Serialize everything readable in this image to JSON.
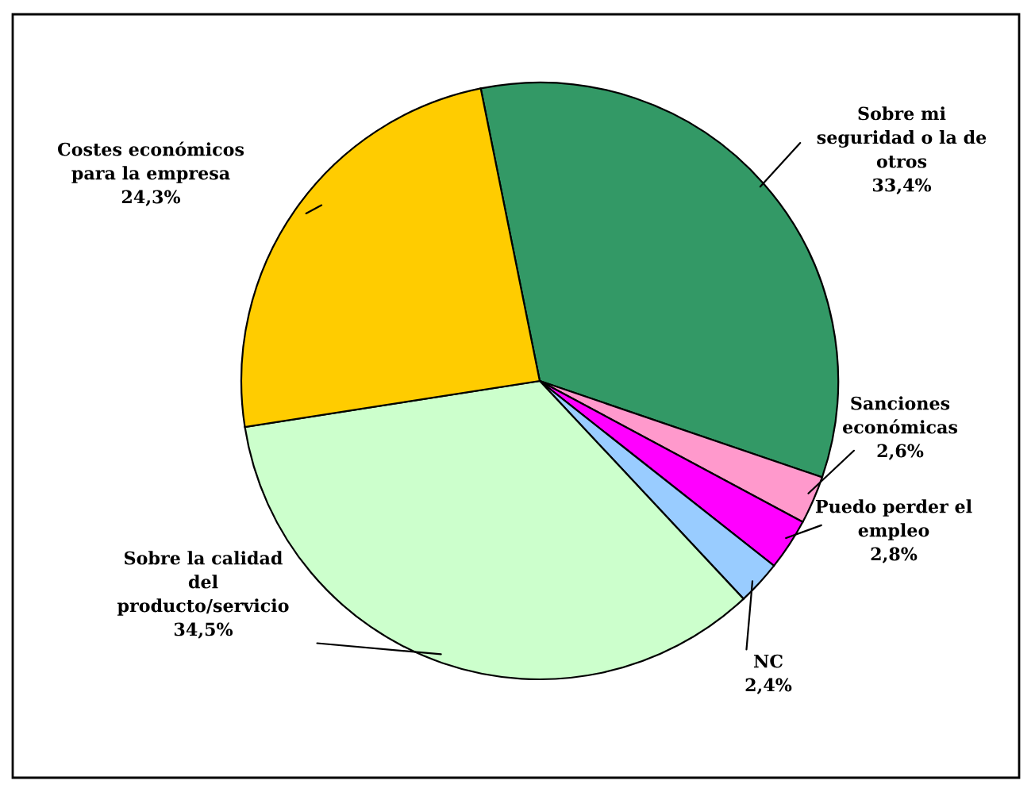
{
  "chart_data": {
    "type": "pie",
    "categories": [
      "Sobre mi\nseguridad o la de\notros",
      "Sanciones\neconómicas",
      "Puedo perder el\nempleo",
      "NC",
      "Sobre la calidad\ndel\nproducto/servicio",
      "Costes económicos\npara la empresa"
    ],
    "values": [
      33.4,
      2.6,
      2.8,
      2.4,
      34.5,
      24.3
    ],
    "value_labels": [
      "33,4%",
      "2,6%",
      "2,8%",
      "2,4%",
      "34,5%",
      "24,3%"
    ],
    "colors": [
      "#339966",
      "#ff99cc",
      "#ff00ff",
      "#99ccff",
      "#ccffcc",
      "#ffcc00"
    ],
    "legend": false
  }
}
